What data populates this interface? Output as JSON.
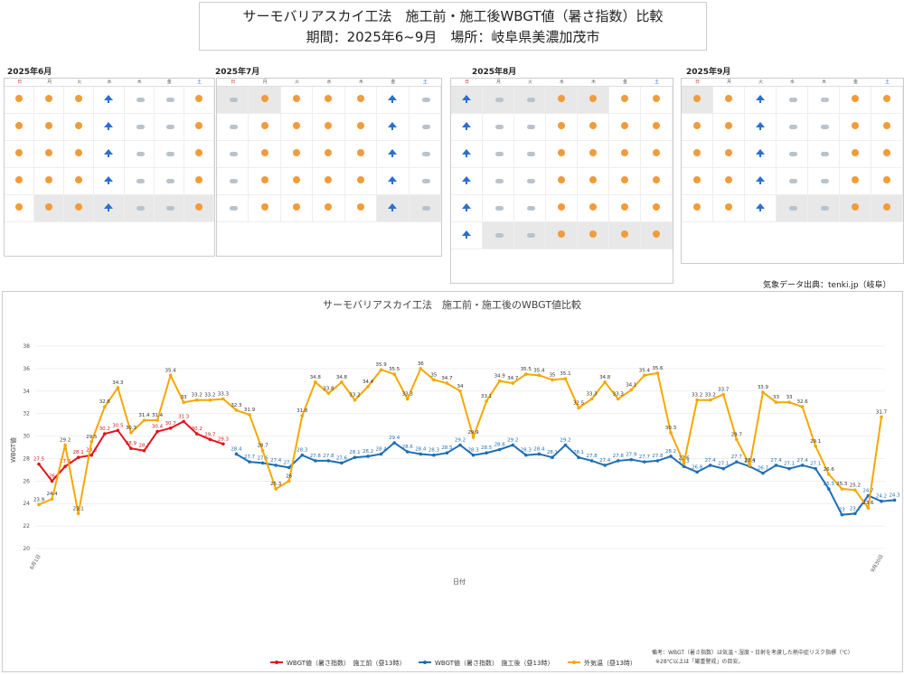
{
  "header": {
    "title_line1": "サーモバリアスカイ工法　施工前・施工後WBGT値（暑さ指数）比較",
    "title_line2": "期間：2025年6~9月　場所：岐阜県美濃加茂市"
  },
  "calendars": [
    {
      "label": "2025年6月",
      "cells": 35,
      "gray_cells": [
        29,
        30,
        31,
        32,
        33,
        34
      ]
    },
    {
      "label": "2025年7月",
      "cells": 35,
      "gray_cells": [
        0,
        1,
        33,
        34
      ]
    },
    {
      "label": "2025年8月",
      "cells": 42,
      "gray_cells": [
        0,
        1,
        2,
        3,
        4,
        36,
        37,
        38,
        39,
        40,
        41
      ]
    },
    {
      "label": "2025年9月",
      "cells": 35,
      "gray_cells": [
        0,
        31,
        32,
        33,
        34
      ]
    }
  ],
  "calendar_dow": [
    "日",
    "月",
    "火",
    "水",
    "木",
    "金",
    "土"
  ],
  "source": "気象データ出典：tenki.jp（岐阜）",
  "chart_data": {
    "type": "line",
    "title": "サーモバリアスカイ工法　施工前・施工後のWBGT値比較",
    "xlabel": "日付",
    "ylabel": "WBGT値",
    "ylim": [
      20,
      38
    ],
    "yticks": [
      20,
      22,
      24,
      26,
      28,
      30,
      32,
      34,
      36,
      38
    ],
    "x_start": "6月1日",
    "x_end": "9月30日",
    "series": [
      {
        "name": "WBGT値（暑さ指数）　施工前（昼13時）",
        "color": "#e0141b",
        "start_index": 0,
        "values": [
          27.5,
          26,
          27.3,
          28.1,
          28.3,
          30.2,
          30.5,
          28.9,
          28.7,
          30.4,
          30.7,
          31.3,
          30.2,
          29.7,
          29.3
        ]
      },
      {
        "name": "WBGT値（暑さ指数）　施工後（昼13時）",
        "color": "#1f6fb2",
        "start_index": 15,
        "values": [
          28.4,
          27.7,
          27.6,
          27.4,
          27.2,
          28.3,
          27.8,
          27.8,
          27.6,
          28.1,
          28.2,
          28.4,
          29.4,
          28.6,
          28.4,
          28.3,
          28.5,
          29.2,
          28.3,
          28.5,
          28.8,
          29.2,
          28.3,
          28.4,
          28.1,
          29.2,
          28.1,
          27.8,
          27.4,
          27.8,
          27.9,
          27.7,
          27.8,
          28.2,
          27.3,
          26.8,
          27.4,
          27.1,
          27.7,
          27.3,
          26.7,
          27.4,
          27.1,
          27.4,
          27.1,
          25.3,
          23,
          23.1,
          24.7,
          24.2,
          24.3
        ]
      },
      {
        "name": "外気温（昼13時）",
        "color": "#f5a800",
        "start_index": 0,
        "values": [
          23.9,
          24.4,
          29.2,
          23.1,
          29.5,
          32.6,
          34.3,
          30.3,
          31.4,
          31.4,
          35.4,
          33,
          33.2,
          33.2,
          33.3,
          32.3,
          31.9,
          28.7,
          25.3,
          26,
          31.8,
          34.8,
          33.8,
          34.8,
          33.2,
          34.4,
          35.9,
          35.5,
          33.3,
          36,
          35,
          34.7,
          34,
          29.9,
          33.1,
          34.9,
          34.7,
          35.5,
          35.4,
          35,
          35.1,
          32.5,
          33.3,
          34.8,
          33.3,
          34.1,
          35.4,
          35.6,
          30.3,
          27.6,
          33.2,
          33.2,
          33.7,
          29.7,
          27.4,
          33.9,
          33,
          33,
          32.6,
          29.1,
          26.6,
          25.3,
          25.2,
          23.6,
          31.7
        ]
      }
    ],
    "legend_position": "bottom",
    "note_line1": "備考：WBGT（暑さ指数）は気温・湿度・日射を考慮した熱中症リスク指標（℃）",
    "note_line2": "※28℃以上は「厳重警戒」の目安。"
  }
}
